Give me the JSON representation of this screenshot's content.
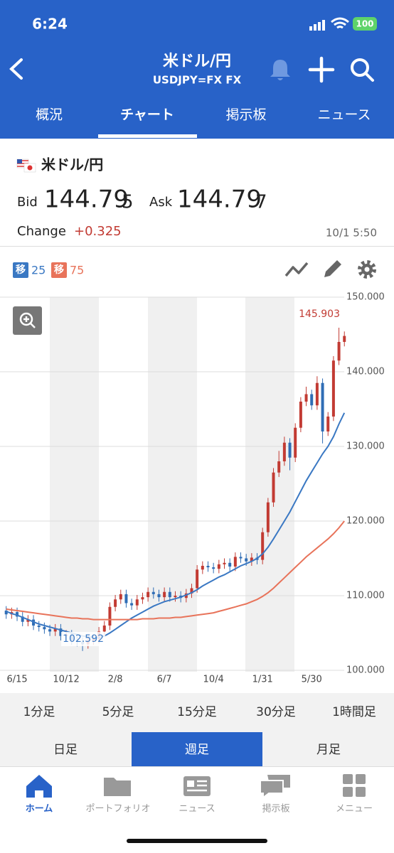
{
  "status": {
    "time": "6:24",
    "battery": "100"
  },
  "header": {
    "title": "米ドル/円",
    "subtitle": "USDJPY=FX FX"
  },
  "tabs": [
    "概況",
    "チャート",
    "掲示板",
    "ニュース"
  ],
  "quote": {
    "name": "米ドル/円",
    "bid_label": "Bid",
    "bid_main": "144.79",
    "bid_pip": "5",
    "ask_label": "Ask",
    "ask_main": "144.79",
    "ask_pip": "7",
    "change_label": "Change",
    "change": "+0.325",
    "time": "10/1 5:50"
  },
  "chart_data": {
    "type": "candlestick",
    "categories": [
      null,
      null,
      "6/15",
      null,
      null,
      null,
      null,
      null,
      null,
      null,
      null,
      "10/12",
      null,
      null,
      null,
      null,
      null,
      null,
      null,
      null,
      "2/8",
      null,
      null,
      null,
      null,
      null,
      null,
      null,
      null,
      "6/7",
      null,
      null,
      null,
      null,
      null,
      null,
      null,
      null,
      "10/4",
      null,
      null,
      null,
      null,
      null,
      null,
      null,
      null,
      "1/31",
      null,
      null,
      null,
      null,
      null,
      null,
      null,
      null,
      "5/30",
      null,
      null,
      null,
      null,
      null,
      null
    ],
    "open": [
      108.0,
      107.5,
      107.8,
      107.2,
      106.5,
      106.8,
      106.0,
      105.8,
      105.5,
      105.2,
      105.6,
      104.6,
      104.8,
      104.0,
      103.8,
      103.5,
      104.0,
      104.2,
      105.2,
      106.0,
      108.5,
      109.5,
      110.2,
      109.0,
      108.7,
      109.5,
      109.8,
      110.5,
      110.2,
      109.8,
      110.5,
      109.8,
      110.0,
      109.7,
      110.3,
      111.0,
      113.5,
      114.0,
      113.8,
      113.6,
      114.2,
      114.4,
      113.9,
      115.2,
      115.0,
      114.6,
      115.1,
      114.8,
      118.5,
      122.5,
      126.5,
      128.0,
      130.5,
      128.5,
      132.5,
      136.0,
      137.0,
      135.5,
      138.5,
      132.0,
      134.0,
      141.5,
      144.0
    ],
    "high": [
      108.6,
      108.4,
      108.4,
      107.8,
      107.4,
      107.4,
      106.6,
      106.4,
      106.1,
      106.2,
      106.2,
      105.4,
      105.4,
      104.6,
      104.4,
      104.6,
      104.8,
      105.8,
      106.6,
      109.1,
      110.1,
      110.8,
      110.8,
      109.6,
      110.1,
      110.4,
      111.1,
      111.1,
      110.8,
      111.1,
      111.1,
      110.6,
      110.6,
      110.9,
      111.6,
      114.1,
      114.6,
      114.6,
      114.4,
      114.8,
      115.0,
      115.0,
      115.8,
      115.8,
      115.6,
      115.7,
      115.7,
      119.1,
      123.1,
      127.1,
      129.4,
      131.3,
      131.1,
      133.1,
      136.6,
      138.0,
      137.6,
      139.4,
      139.1,
      134.6,
      142.1,
      145.903,
      145.4
    ],
    "low": [
      106.9,
      106.9,
      106.6,
      105.9,
      105.9,
      105.4,
      105.2,
      104.9,
      104.6,
      104.6,
      104.0,
      104.0,
      103.4,
      103.2,
      102.592,
      102.9,
      103.4,
      103.6,
      104.6,
      105.4,
      107.9,
      108.9,
      108.4,
      108.1,
      108.1,
      108.9,
      109.2,
      109.6,
      109.2,
      109.2,
      109.2,
      109.2,
      109.1,
      109.1,
      109.7,
      110.4,
      112.9,
      113.2,
      113.0,
      113.0,
      113.6,
      113.3,
      113.3,
      114.4,
      114.0,
      114.0,
      114.2,
      114.2,
      117.9,
      121.9,
      125.9,
      127.4,
      126.8,
      127.9,
      131.9,
      135.4,
      134.9,
      134.9,
      130.4,
      131.4,
      133.4,
      140.9,
      143.4
    ],
    "close": [
      107.5,
      107.8,
      107.2,
      106.5,
      106.8,
      106.0,
      105.8,
      105.5,
      105.2,
      105.6,
      104.6,
      104.8,
      104.0,
      103.8,
      103.5,
      104.0,
      104.2,
      105.2,
      106.0,
      108.5,
      109.5,
      110.2,
      109.0,
      108.7,
      109.5,
      109.8,
      110.5,
      110.2,
      109.8,
      110.5,
      109.8,
      110.0,
      109.7,
      110.3,
      111.0,
      113.5,
      114.0,
      113.8,
      113.6,
      114.2,
      114.4,
      113.9,
      115.2,
      115.0,
      114.6,
      115.1,
      114.8,
      118.5,
      122.5,
      126.5,
      128.0,
      130.5,
      128.5,
      132.5,
      136.0,
      137.0,
      135.5,
      138.5,
      132.0,
      134.0,
      141.5,
      144.0,
      144.8
    ],
    "up_color": "#c23b33",
    "down_color": "#2f6db5",
    "series": [
      {
        "name": "25",
        "badge": "移",
        "color": "#3a78c3",
        "values": [
          107.9,
          107.6,
          107.4,
          107.1,
          106.8,
          106.5,
          106.2,
          106.0,
          105.8,
          105.6,
          105.4,
          105.2,
          105.0,
          104.8,
          104.6,
          104.5,
          104.4,
          104.4,
          104.6,
          105.0,
          105.5,
          106.0,
          106.5,
          107.0,
          107.4,
          107.8,
          108.2,
          108.6,
          108.9,
          109.2,
          109.4,
          109.6,
          109.8,
          110.1,
          110.4,
          110.8,
          111.3,
          111.7,
          112.1,
          112.5,
          112.8,
          113.2,
          113.6,
          114.0,
          114.3,
          114.6,
          115.0,
          115.6,
          116.5,
          117.6,
          118.8,
          120.0,
          121.2,
          122.6,
          124.0,
          125.4,
          126.6,
          127.8,
          129.0,
          130.0,
          131.3,
          133.0,
          134.5
        ]
      },
      {
        "name": "75",
        "badge": "移",
        "color": "#e8735a",
        "values": [
          108.2,
          108.1,
          108.0,
          107.9,
          107.8,
          107.7,
          107.6,
          107.5,
          107.4,
          107.3,
          107.2,
          107.1,
          107.0,
          107.0,
          106.9,
          106.9,
          106.8,
          106.8,
          106.8,
          106.8,
          106.8,
          106.8,
          106.8,
          106.8,
          106.8,
          106.9,
          106.9,
          106.9,
          107.0,
          107.0,
          107.0,
          107.1,
          107.1,
          107.2,
          107.3,
          107.4,
          107.5,
          107.6,
          107.7,
          107.9,
          108.1,
          108.3,
          108.5,
          108.7,
          108.9,
          109.2,
          109.5,
          109.9,
          110.4,
          111.0,
          111.7,
          112.4,
          113.1,
          113.8,
          114.5,
          115.2,
          115.8,
          116.4,
          117.0,
          117.6,
          118.3,
          119.1,
          120.0
        ]
      }
    ],
    "ylim": [
      100,
      150
    ],
    "yticks": [
      {
        "value": 100,
        "label": "100.000"
      },
      {
        "value": 110,
        "label": "110.000"
      },
      {
        "value": 120,
        "label": "120.000"
      },
      {
        "value": 130,
        "label": "130.000"
      },
      {
        "value": 140,
        "label": "140.000"
      },
      {
        "value": 150,
        "label": "150.000"
      }
    ],
    "grid": true
  },
  "periods": {
    "minutes": [
      "1分足",
      "5分足",
      "15分足",
      "30分足",
      "1時間足"
    ],
    "days": [
      "日足",
      "週足",
      "月足"
    ]
  },
  "nav": [
    "ホーム",
    "ポートフォリオ",
    "ニュース",
    "掲示板",
    "メニュー"
  ]
}
